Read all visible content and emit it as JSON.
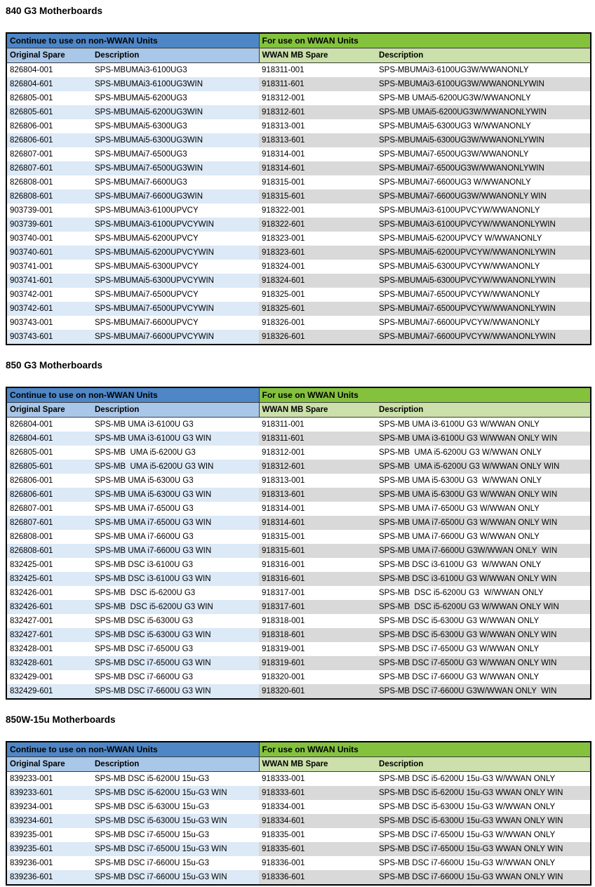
{
  "colors": {
    "group_header_blue": "#4E86C6",
    "group_header_green": "#84C23E",
    "column_header_blue": "#A9C7E8",
    "column_header_green": "#CBE0AA",
    "stripe_blue": "#DCE9F6",
    "stripe_gray": "#D9D9D9",
    "table_border": "#000000",
    "text": "#000000"
  },
  "document": {
    "sections": [
      {
        "title": "840 G3 Motherboards",
        "left_group_header": "Continue to use on non-WWAN Units",
        "right_group_header": "For use on WWAN Units",
        "column_headers": [
          "Original Spare",
          "Description",
          "WWAN MB Spare",
          "Description"
        ],
        "rows": [
          [
            "826804-001",
            "SPS-MBUMAi3-6100UG3",
            "918311-001",
            "SPS-MBUMAi3-6100UG3W/WWANONLY"
          ],
          [
            "826804-601",
            "SPS-MBUMAi3-6100UG3WIN",
            "918311-601",
            "SPS-MBUMAi3-6100UG3W/WWANONLYWIN"
          ],
          [
            "826805-001",
            "SPS-MBUMAi5-6200UG3",
            "918312-001",
            "SPS-MB UMAi5-6200UG3W/WWANONLY"
          ],
          [
            "826805-601",
            "SPS-MBUMAi5-6200UG3WIN",
            "918312-601",
            "SPS-MB UMAi5-6200UG3W/WWANONLYWIN"
          ],
          [
            "826806-001",
            "SPS-MBUMAi5-6300UG3",
            "918313-001",
            "SPS-MBUMAi5-6300UG3 W/WWANONLY"
          ],
          [
            "826806-601",
            "SPS-MBUMAi5-6300UG3WIN",
            "918313-601",
            "SPS-MBUMAi5-6300UG3W/WWANONLYWIN"
          ],
          [
            "826807-001",
            "SPS-MBUMAi7-6500UG3",
            "918314-001",
            "SPS-MBUMAi7-6500UG3W/WWANONLY"
          ],
          [
            "826807-601",
            "SPS-MBUMAi7-6500UG3WIN",
            "918314-601",
            "SPS-MBUMAi7-6500UG3W/WWANONLYWIN"
          ],
          [
            "826808-001",
            "SPS-MBUMAi7-6600UG3",
            "918315-001",
            "SPS-MBUMAi7-6600UG3 W/WWANONLY"
          ],
          [
            "826808-601",
            "SPS-MBUMAi7-6600UG3WIN",
            "918315-601",
            "SPS-MBUMAi7-6600UG3W/WWANONLY WIN"
          ],
          [
            "903739-001",
            "SPS-MBUMAi3-6100UPVCY",
            "918322-001",
            "SPS-MBUMAi3-6100UPVCYW/WWANONLY"
          ],
          [
            "903739-601",
            "SPS-MBUMAi3-6100UPVCYWIN",
            "918322-601",
            "SPS-MBUMAi3-6100UPVCYW/WWANONLYWIN"
          ],
          [
            "903740-001",
            "SPS-MBUMAi5-6200UPVCY",
            "918323-001",
            "SPS-MBUMAi5-6200UPVCY W/WWANONLY"
          ],
          [
            "903740-601",
            "SPS-MBUMAi5-6200UPVCYWIN",
            "918323-601",
            "SPS-MBUMAi5-6200UPVCYW/WWANONLYWIN"
          ],
          [
            "903741-001",
            "SPS-MBUMAi5-6300UPVCY",
            "918324-001",
            "SPS-MBUMAi5-6300UPVCYW/WWANONLY"
          ],
          [
            "903741-601",
            "SPS-MBUMAi5-6300UPVCYWIN",
            "918324-601",
            "SPS-MBUMAi5-6300UPVCYW/WWANONLYWIN"
          ],
          [
            "903742-001",
            "SPS-MBUMAi7-6500UPVCY",
            "918325-001",
            "SPS-MBUMAi7-6500UPVCYW/WWANONLY"
          ],
          [
            "903742-601",
            "SPS-MBUMAi7-6500UPVCYWIN",
            "918325-601",
            "SPS-MBUMAi7-6500UPVCYW/WWANONLYWIN"
          ],
          [
            "903743-001",
            "SPS-MBUMAi7-6600UPVCY",
            "918326-001",
            "SPS-MBUMAi7-6600UPVCYW/WWANONLY"
          ],
          [
            "903743-601",
            "SPS-MBUMAi7-6600UPVCYWIN",
            "918326-601",
            "SPS-MBUMAi7-6600UPVCYW/WWANONLYWIN"
          ]
        ]
      },
      {
        "title": "850 G3 Motherboards",
        "left_group_header": "Continue to use on non-WWAN Units",
        "right_group_header": "For use on WWAN Units",
        "column_headers": [
          "Original Spare",
          "Description",
          "WWAN MB Spare",
          "Description"
        ],
        "rows": [
          [
            "826804-001",
            "SPS-MB UMA i3-6100U G3",
            "918311-001",
            "SPS-MB UMA i3-6100U G3 W/WWAN ONLY"
          ],
          [
            "826804-601",
            "SPS-MB UMA i3-6100U G3 WIN",
            "918311-601",
            "SPS-MB UMA i3-6100U G3 W/WWAN ONLY WIN"
          ],
          [
            "826805-001",
            "SPS-MB  UMA i5-6200U G3",
            "918312-001",
            "SPS-MB  UMA i5-6200U G3 W/WWAN ONLY"
          ],
          [
            "826805-601",
            "SPS-MB  UMA i5-6200U G3 WIN",
            "918312-601",
            "SPS-MB  UMA i5-6200U G3 W/WWAN ONLY WIN"
          ],
          [
            "826806-001",
            "SPS-MB UMA i5-6300U G3",
            "918313-001",
            "SPS-MB UMA i5-6300U G3  W/WWAN ONLY"
          ],
          [
            "826806-601",
            "SPS-MB UMA i5-6300U G3 WIN",
            "918313-601",
            "SPS-MB UMA i5-6300U G3 W/WWAN ONLY WIN"
          ],
          [
            "826807-001",
            "SPS-MB UMA i7-6500U G3",
            "918314-001",
            "SPS-MB UMA i7-6500U G3 W/WWAN ONLY"
          ],
          [
            "826807-601",
            "SPS-MB UMA i7-6500U G3 WIN",
            "918314-601",
            "SPS-MB UMA i7-6500U G3 W/WWAN ONLY WIN"
          ],
          [
            "826808-001",
            "SPS-MB UMA i7-6600U G3",
            "918315-001",
            "SPS-MB UMA i7-6600U G3 W/WWAN ONLY"
          ],
          [
            "826808-601",
            "SPS-MB UMA i7-6600U G3 WIN",
            "918315-601",
            "SPS-MB UMA i7-6600U G3W/WWAN ONLY  WIN"
          ],
          [
            "832425-001",
            "SPS-MB DSC i3-6100U G3",
            "918316-001",
            "SPS-MB DSC i3-6100U G3  W/WWAN ONLY"
          ],
          [
            "832425-601",
            "SPS-MB DSC i3-6100U G3 WIN",
            "918316-601",
            "SPS-MB DSC i3-6100U G3 W/WWAN ONLY WIN"
          ],
          [
            "832426-001",
            "SPS-MB  DSC i5-6200U G3",
            "918317-001",
            "SPS-MB  DSC i5-6200U G3  W/WWAN ONLY"
          ],
          [
            "832426-601",
            "SPS-MB  DSC i5-6200U G3 WIN",
            "918317-601",
            "SPS-MB  DSC i5-6200U G3 W/WWAN ONLY WIN"
          ],
          [
            "832427-001",
            "SPS-MB DSC i5-6300U G3",
            "918318-001",
            "SPS-MB DSC i5-6300U G3 W/WWAN ONLY"
          ],
          [
            "832427-601",
            "SPS-MB DSC i5-6300U G3 WIN",
            "918318-601",
            "SPS-MB DSC i5-6300U G3 W/WWAN ONLY WIN"
          ],
          [
            "832428-001",
            "SPS-MB DSC i7-6500U G3",
            "918319-001",
            "SPS-MB DSC i7-6500U G3 W/WWAN ONLY"
          ],
          [
            "832428-601",
            "SPS-MB DSC i7-6500U G3 WIN",
            "918319-601",
            "SPS-MB DSC i7-6500U G3 W/WWAN ONLY WIN"
          ],
          [
            "832429-001",
            "SPS-MB DSC i7-6600U G3",
            "918320-001",
            "SPS-MB DSC i7-6600U G3 W/WWAN ONLY"
          ],
          [
            "832429-601",
            "SPS-MB DSC i7-6600U G3 WIN",
            "918320-601",
            "SPS-MB DSC i7-6600U G3W/WWAN ONLY  WIN"
          ]
        ]
      },
      {
        "title": "850W-15u Motherboards",
        "left_group_header": "Continue to use on non-WWAN Units",
        "right_group_header": "For use on WWAN Units",
        "column_headers": [
          "Original Spare",
          "Description",
          "WWAN MB Spare",
          "Description"
        ],
        "rows": [
          [
            "839233-001",
            "SPS-MB DSC i5-6200U 15u-G3",
            "918333-001",
            "SPS-MB DSC i5-6200U 15u-G3 W/WWAN ONLY"
          ],
          [
            "839233-601",
            "SPS-MB DSC i5-6200U 15u-G3 WIN",
            "918333-601",
            "SPS-MB DSC i5-6200U 15u-G3 WWAN ONLY WIN"
          ],
          [
            "839234-001",
            "SPS-MB DSC i5-6300U 15u-G3",
            "918334-001",
            "SPS-MB DSC i5-6300U 15u-G3 W/WWAN ONLY"
          ],
          [
            "839234-601",
            "SPS-MB DSC i5-6300U 15u-G3 WIN",
            "918334-601",
            "SPS-MB DSC i5-6300U 15u-G3 WWAN ONLY WIN"
          ],
          [
            "839235-001",
            "SPS-MB DSC i7-6500U 15u-G3",
            "918335-001",
            "SPS-MB DSC i7-6500U 15u-G3 W/WWAN ONLY"
          ],
          [
            "839235-601",
            "SPS-MB DSC i7-6500U 15u-G3 WIN",
            "918335-601",
            "SPS-MB DSC i7-6500U 15u-G3 WWAN ONLY WIN"
          ],
          [
            "839236-001",
            "SPS-MB DSC i7-6600U 15u-G3",
            "918336-001",
            "SPS-MB DSC i7-6600U 15u-G3 W/WWAN ONLY"
          ],
          [
            "839236-601",
            "SPS-MB DSC i7-6600U 15u-G3 WIN",
            "918336-601",
            "SPS-MB DSC i7-6600U 15u-G3 WWAN ONLY WIN"
          ]
        ]
      }
    ]
  }
}
